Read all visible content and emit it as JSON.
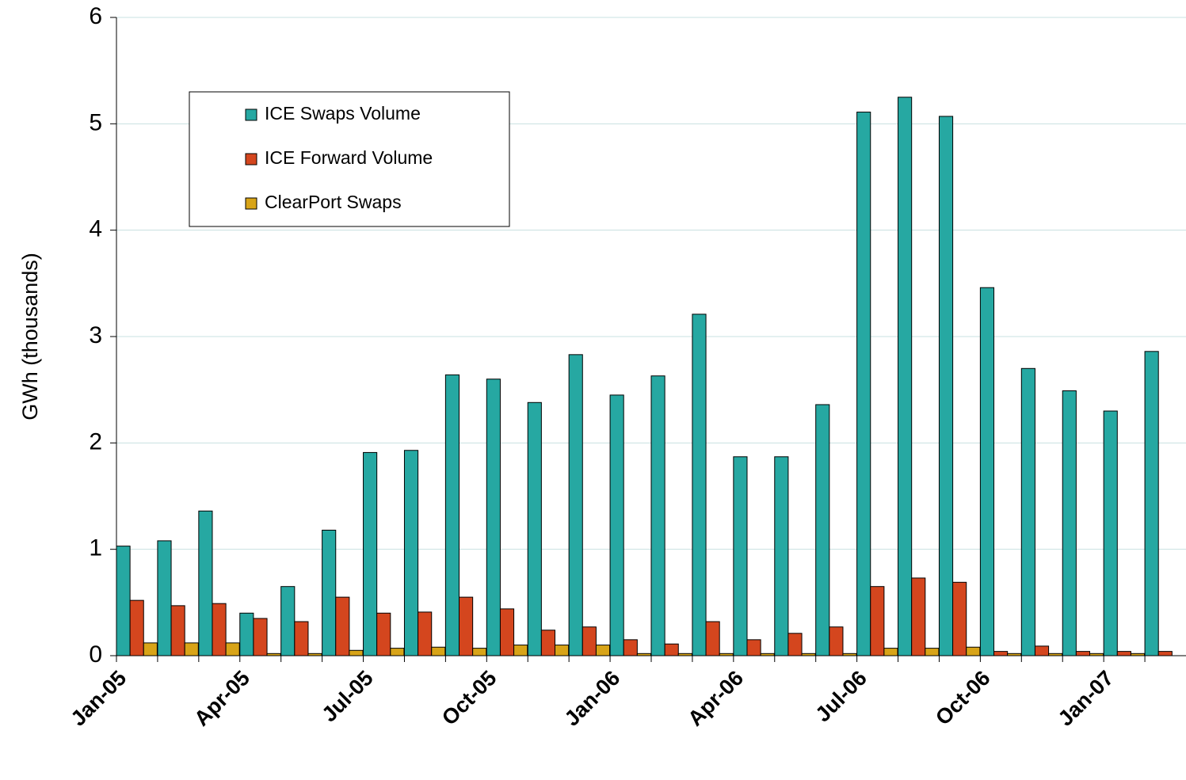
{
  "chart_data": {
    "type": "bar",
    "y_label": "GWh (thousands)",
    "categories": [
      "Jan-05",
      null,
      null,
      "Apr-05",
      null,
      null,
      "Jul-05",
      null,
      null,
      "Oct-05",
      null,
      null,
      "Jan-06",
      null,
      null,
      "Apr-06",
      null,
      null,
      "Jul-06",
      null,
      null,
      "Oct-06",
      null,
      null,
      "Jan-07",
      null
    ],
    "series": [
      {
        "name": "ICE Swaps Volume",
        "color": "#26a8a2",
        "values": [
          1.03,
          1.08,
          1.36,
          0.4,
          0.65,
          1.18,
          1.91,
          1.93,
          2.64,
          2.6,
          2.38,
          2.83,
          2.45,
          2.63,
          3.21,
          1.87,
          1.87,
          2.36,
          5.11,
          5.25,
          5.07,
          3.46,
          2.7,
          2.49,
          2.3,
          2.86
        ]
      },
      {
        "name": "ICE Forward Volume",
        "color": "#d4461e",
        "values": [
          0.52,
          0.47,
          0.49,
          0.35,
          0.32,
          0.55,
          0.4,
          0.41,
          0.55,
          0.44,
          0.24,
          0.27,
          0.15,
          0.11,
          0.32,
          0.15,
          0.21,
          0.27,
          0.65,
          0.73,
          0.69,
          0.04,
          0.09,
          0.04,
          0.04,
          0.04
        ]
      },
      {
        "name": "ClearPort Swaps",
        "color": "#d8a418",
        "values": [
          0.12,
          0.12,
          0.12,
          0.02,
          0.02,
          0.05,
          0.07,
          0.08,
          0.07,
          0.1,
          0.1,
          0.1,
          0.02,
          0.02,
          0.02,
          0.02,
          0.02,
          0.02,
          0.07,
          0.07,
          0.08,
          0.02,
          0.02,
          0.02,
          0.02,
          null
        ]
      }
    ],
    "ylim": [
      0,
      6
    ],
    "yticks": [
      0,
      1,
      2,
      3,
      4,
      5,
      6
    ],
    "grid": true
  }
}
